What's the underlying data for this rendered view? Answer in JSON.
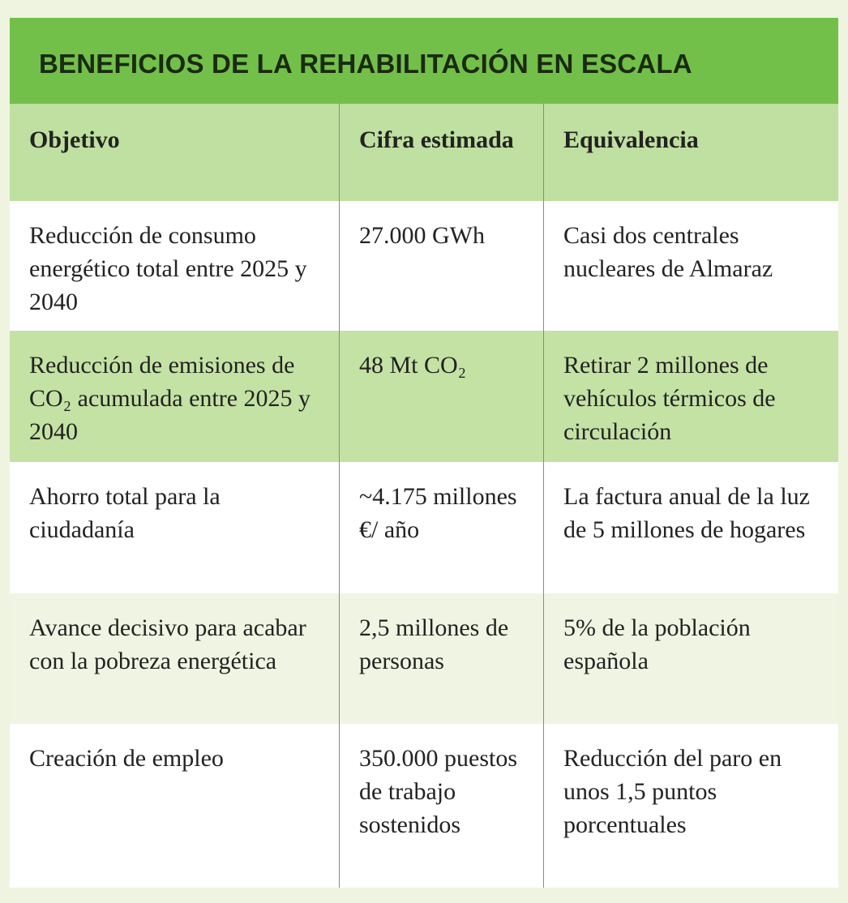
{
  "title": "BENEFICIOS DE LA REHABILITACIÓN EN ESCALA",
  "table": {
    "header": [
      "Objetivo",
      "Cifra estimada",
      "Equivalencia"
    ],
    "rows": [
      [
        "Reducción de consumo energético total entre 2025 y 2040",
        "27.000 GWh",
        "Casi dos centrales nucleares de Almaraz"
      ],
      [
        "Reducción de emisiones de CO₂ acumulada entre 2025 y 2040",
        "48 Mt CO₂",
        "Retirar 2 millones de vehículos térmicos de circulación"
      ],
      [
        "Ahorro total para la ciudadanía",
        "~4.175 millones €/ año",
        "La factura anual de la luz de 5 millones de hogares"
      ],
      [
        "Avance decisivo para acabar con la pobreza energética",
        "2,5 millones de personas",
        "5% de la población española"
      ],
      [
        "Creación de empleo",
        "350.000 puestos de trabajo sostenidos",
        "Reducción del paro en unos 1,5 puntos porcentuales"
      ]
    ]
  }
}
